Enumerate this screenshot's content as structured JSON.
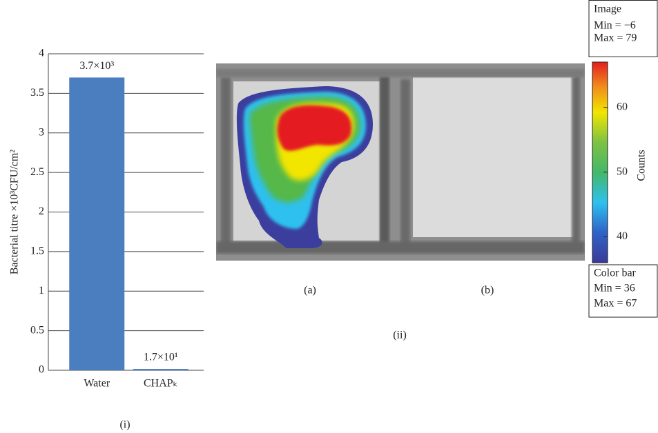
{
  "chart_data": [
    {
      "type": "bar",
      "y_label": "Bacterial titre ×10³CFU/cm²",
      "categories": [
        "Water",
        "CHAPₖ"
      ],
      "values": [
        3.7,
        0.017
      ],
      "value_labels": [
        "3.7×10³",
        "1.7×10¹"
      ],
      "color": "#4a7ebf",
      "ylim": [
        0,
        4
      ],
      "yticks": [
        0,
        0.5,
        1,
        1.5,
        2,
        2.5,
        3,
        3.5,
        4
      ],
      "grid": true,
      "caption": "(i)"
    },
    {
      "type": "colorbar",
      "panels": [
        "(a)",
        "(b)"
      ],
      "caption": "(ii)",
      "label": "Counts",
      "ylim": [
        36,
        67
      ],
      "yticks": [
        40,
        50,
        60
      ],
      "image_info": [
        "Image",
        "Min = −6",
        "Max = 79"
      ],
      "colorbar_info": [
        "Color bar",
        "Min = 36",
        "Max = 67"
      ]
    }
  ]
}
